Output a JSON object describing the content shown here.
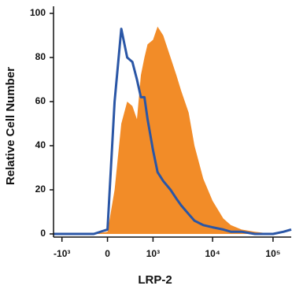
{
  "chart_data": {
    "type": "histogram-overlay",
    "xlabel": "LRP-2",
    "ylabel": "Relative Cell Number",
    "xscale": "biexponential",
    "x": [
      -1400,
      -1000,
      -500,
      -200,
      0,
      100,
      200,
      300,
      400,
      500,
      600,
      700,
      800,
      1000,
      1200,
      1500,
      2000,
      2500,
      3000,
      4000,
      5000,
      7000,
      10000,
      15000,
      20000,
      30000,
      50000,
      100000,
      150000,
      200000
    ],
    "series": [
      {
        "type": "area",
        "color": "#f28c28",
        "values": [
          0,
          0,
          0,
          0,
          1,
          20,
          50,
          60,
          58,
          52,
          72,
          80,
          86,
          88,
          94,
          90,
          80,
          72,
          65,
          55,
          40,
          25,
          15,
          7,
          4,
          2,
          1,
          0,
          0,
          0
        ]
      },
      {
        "type": "line",
        "color": "#2a56a6",
        "values": [
          0,
          0,
          0,
          0,
          2,
          60,
          93,
          80,
          78,
          70,
          62,
          62,
          52,
          38,
          28,
          24,
          20,
          16,
          13,
          9,
          6,
          4,
          3,
          2,
          1,
          1,
          0,
          0,
          1,
          2
        ]
      }
    ],
    "xlim": [
      -1400,
      200000
    ],
    "xticks": [
      {
        "value": -1000,
        "label": "-10³"
      },
      0,
      {
        "value": 1000,
        "label": "10³"
      },
      {
        "value": 10000,
        "label": "10⁴"
      },
      {
        "value": 100000,
        "label": "10⁵"
      }
    ],
    "ylim": [
      0,
      100
    ],
    "yticks": [
      0,
      20,
      40,
      60,
      80,
      100
    ]
  }
}
